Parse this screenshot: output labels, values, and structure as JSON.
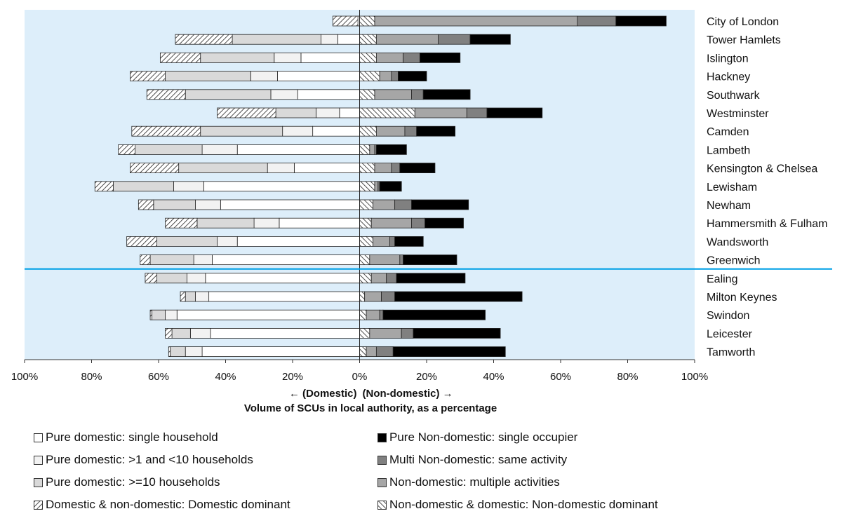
{
  "chart_data": {
    "type": "bar",
    "orientation": "horizontal",
    "stacked": true,
    "diverging": true,
    "categories": [
      "City of London",
      "Tower Hamlets",
      "Islington",
      "Hackney",
      "Southwark",
      "Westminster",
      "Camden",
      "Lambeth",
      "Kensington & Chelsea",
      "Lewisham",
      "Newham",
      "Hammersmith & Fulham",
      "Wandsworth",
      "Greenwich",
      "Ealing",
      "Milton Keynes",
      "Swindon",
      "Leicester",
      "Tamworth"
    ],
    "series": [
      {
        "name": "Pure domestic: single household",
        "side": "domestic",
        "color": "#ffffff",
        "pattern": "none",
        "values": [
          0.5,
          6.5,
          17.5,
          24.5,
          18.5,
          6,
          14,
          36.5,
          19.5,
          46.5,
          41.5,
          24,
          36.5,
          44,
          46,
          45,
          54.5,
          44.5,
          47
        ]
      },
      {
        "name": "Pure domestic: >1 and <10 households",
        "side": "domestic",
        "color": "#f2f2f2",
        "pattern": "none",
        "values": [
          0,
          5,
          8,
          8,
          8,
          7,
          9,
          10.5,
          8,
          9,
          7.5,
          7.5,
          6,
          5.5,
          5.5,
          4,
          3.5,
          6,
          5
        ]
      },
      {
        "name": "Pure domestic: >=10 households",
        "side": "domestic",
        "color": "#d9d9d9",
        "pattern": "none",
        "values": [
          0,
          26.5,
          22,
          25.5,
          25.5,
          12,
          24.5,
          20,
          26.5,
          18,
          12.5,
          17,
          18,
          13,
          9,
          3,
          4,
          5.5,
          4.5
        ]
      },
      {
        "name": "Domestic & non-domestic: Domestic dominant",
        "side": "domestic",
        "color": "#ffffff",
        "pattern": "diag-right",
        "values": [
          7.5,
          17,
          12,
          10.5,
          11.5,
          17.5,
          20.5,
          5,
          14.5,
          5.5,
          4.5,
          9.5,
          9,
          3,
          3.5,
          1.5,
          0.5,
          2,
          0.5
        ]
      },
      {
        "name": "Non-domestic & domestic: Non-domestic dominant",
        "side": "non-domestic",
        "color": "#ffffff",
        "pattern": "diag-left",
        "values": [
          4.5,
          5,
          5,
          6,
          4.5,
          16.5,
          5,
          3,
          4.5,
          4.5,
          4,
          3.5,
          4,
          3,
          3.5,
          1.5,
          2,
          3,
          2
        ]
      },
      {
        "name": "Non-domestic: multiple activities",
        "side": "non-domestic",
        "color": "#a6a6a6",
        "pattern": "none",
        "values": [
          60.5,
          18.5,
          8,
          3.5,
          11,
          15.5,
          8.5,
          1.5,
          5,
          1,
          6.5,
          12,
          5,
          9,
          4.5,
          5,
          4,
          9.5,
          3
        ]
      },
      {
        "name": "Multi Non-domestic: same activity",
        "side": "non-domestic",
        "color": "#808080",
        "pattern": "none",
        "values": [
          11.5,
          9.5,
          5,
          2,
          3.5,
          6,
          3.5,
          0.5,
          2.5,
          0.5,
          5,
          4,
          1.5,
          1,
          3,
          4,
          1,
          3.5,
          5
        ]
      },
      {
        "name": "Pure Non-domestic: single occupier",
        "side": "non-domestic",
        "color": "#000000",
        "pattern": "none",
        "values": [
          15,
          12,
          12,
          8.5,
          14,
          16.5,
          11.5,
          9,
          10.5,
          6.5,
          17,
          11.5,
          8.5,
          16,
          20.5,
          38,
          30.5,
          26,
          33.5
        ]
      }
    ],
    "xaxis": {
      "min": -100,
      "max": 100,
      "ticks": [
        -100,
        -80,
        -60,
        -40,
        -20,
        0,
        20,
        40,
        60,
        80,
        100
      ],
      "tick_labels": [
        "100%",
        "80%",
        "60%",
        "40%",
        "20%",
        "0%",
        "20%",
        "40%",
        "60%",
        "80%",
        "100%"
      ]
    },
    "direction_label_left": "← (Domestic)",
    "direction_label_right": "(Non-domestic) →",
    "xlabel": "Volume of SCUs in local authority, as a percentage",
    "separator_after": "Greenwich",
    "plot_background": "#ddeefa",
    "separator_color": "#00a0e6",
    "legend_placement": "bottom",
    "legend_order": [
      "Pure domestic: single household",
      "Pure Non-domestic: single occupier",
      "Pure domestic: >1 and <10 households",
      "Multi Non-domestic: same activity",
      "Pure domestic: >=10 households",
      "Non-domestic: multiple activities",
      "Domestic & non-domestic: Domestic dominant",
      "Non-domestic & domestic: Non-domestic dominant"
    ]
  }
}
